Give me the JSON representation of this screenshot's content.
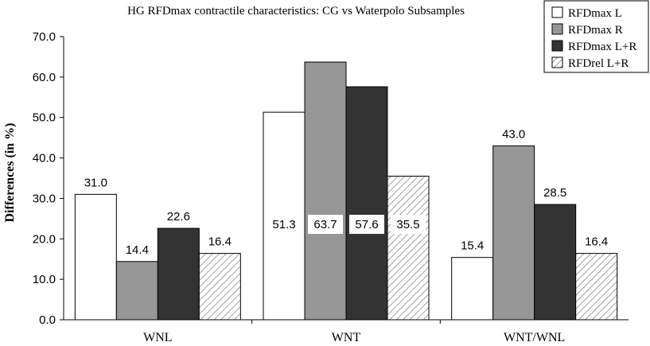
{
  "chart_data": {
    "type": "bar",
    "title": "HG RFDmax contractile characteristics: CG vs Waterpolo Subsamples",
    "xlabel": "",
    "ylabel": "Differences (in %)",
    "ylim": [
      0,
      70
    ],
    "yticks": [
      "0.0",
      "10.0",
      "20.0",
      "30.0",
      "40.0",
      "50.0",
      "60.0",
      "70.0"
    ],
    "grid": false,
    "legend_position": "top-right",
    "categories": [
      "WNL",
      "WNT",
      "WNT/WNL"
    ],
    "series": [
      {
        "name": "RFDmax L",
        "values": [
          31.0,
          51.3,
          15.4
        ],
        "labels": [
          "31.0",
          "51.3",
          "15.4"
        ],
        "fill": "#ffffff",
        "pattern": "solid"
      },
      {
        "name": "RFDmax R",
        "values": [
          14.4,
          63.7,
          43.0
        ],
        "labels": [
          "14.4",
          "63.7",
          "43.0"
        ],
        "fill": "#969696",
        "pattern": "solid"
      },
      {
        "name": "RFDmax L+R",
        "values": [
          22.6,
          57.6,
          28.5
        ],
        "labels": [
          "22.6",
          "57.6",
          "28.5"
        ],
        "fill": "#333333",
        "pattern": "solid"
      },
      {
        "name": "RFDrel L+R",
        "values": [
          16.4,
          35.5,
          16.4
        ],
        "labels": [
          "16.4",
          "35.5",
          "16.4"
        ],
        "fill": "#ffffff",
        "pattern": "hatch"
      }
    ],
    "label_inside_category": "WNT"
  }
}
